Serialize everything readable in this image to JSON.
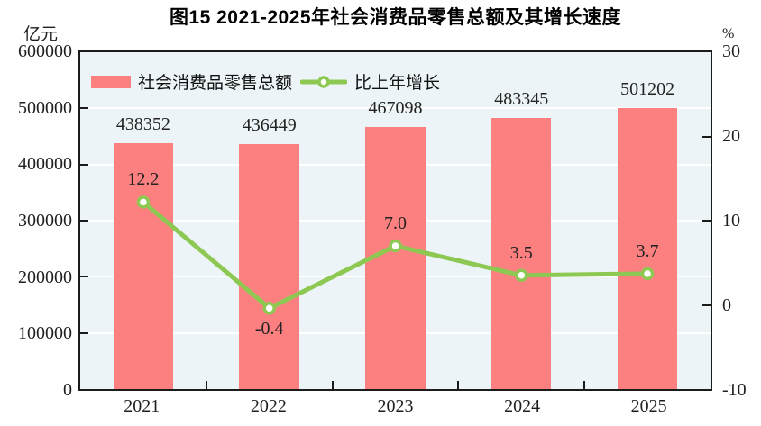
{
  "title": "图15  2021-2025年社会消费品零售总额及其增长速度",
  "left_axis_unit": "亿元",
  "right_axis_unit": "%",
  "legend": {
    "bar_label": "社会消费品零售总额",
    "line_label": "比上年增长"
  },
  "chart_data": {
    "type": "bar+line",
    "title": "图15  2021-2025年社会消费品零售总额及其增长速度",
    "categories": [
      "2021",
      "2022",
      "2023",
      "2024",
      "2025"
    ],
    "series": [
      {
        "name": "社会消费品零售总额",
        "type": "bar",
        "axis": "left",
        "unit": "亿元",
        "color": "#fd8080",
        "values": [
          438352,
          436449,
          467098,
          483345,
          501202
        ],
        "labels": [
          "438352",
          "436449",
          "467098",
          "483345",
          "501202"
        ]
      },
      {
        "name": "比上年增长",
        "type": "line",
        "axis": "right",
        "unit": "%",
        "color": "#8dc852",
        "marker_fill": "#ffffff",
        "values": [
          12.2,
          -0.4,
          7.0,
          3.5,
          3.7
        ],
        "labels": [
          "12.2",
          "-0.4",
          "7.0",
          "3.5",
          "3.7"
        ],
        "label_positions": [
          "above",
          "below",
          "above",
          "above",
          "above"
        ]
      }
    ],
    "left_axis": {
      "unit": "亿元",
      "min": 0,
      "max": 600000,
      "step": 100000
    },
    "right_axis": {
      "unit": "%",
      "min": -10,
      "max": 30,
      "step": 10
    },
    "grid": true,
    "legend_position": "top-left-inside",
    "plot_bg_color": "#edf4f7",
    "grid_color": "#ffffff",
    "border_color": "#1b1b1b"
  }
}
